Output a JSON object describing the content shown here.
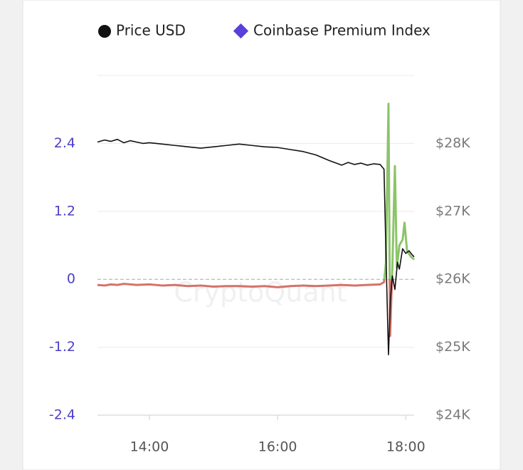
{
  "chart_data": {
    "type": "line",
    "watermark": "CryptoQuant",
    "xlim": [
      13.19,
      18.13
    ],
    "xticks": [
      {
        "value": 14,
        "label": "14:00"
      },
      {
        "value": 16,
        "label": "16:00"
      },
      {
        "value": 18,
        "label": "18:00"
      }
    ],
    "ylim": [
      -2.4,
      3.6
    ],
    "yticks": [
      -2.4,
      -1.2,
      0,
      1.2,
      2.4
    ],
    "y2lim": [
      24000,
      29000
    ],
    "y2ticks": [
      {
        "value": 24000,
        "label": "$24K"
      },
      {
        "value": 25000,
        "label": "$25K"
      },
      {
        "value": 26000,
        "label": "$26K"
      },
      {
        "value": 27000,
        "label": "$27K"
      },
      {
        "value": 28000,
        "label": "$28K"
      }
    ],
    "grid": true,
    "zero_line_dashed": true,
    "series": [
      {
        "name": "Price USD",
        "color": "#111111",
        "axis": "y2",
        "x": [
          13.19,
          13.3,
          13.4,
          13.5,
          13.6,
          13.7,
          13.8,
          13.9,
          14.0,
          14.2,
          14.4,
          14.6,
          14.8,
          15.0,
          15.2,
          15.4,
          15.6,
          15.8,
          16.0,
          16.2,
          16.4,
          16.6,
          16.8,
          17.0,
          17.1,
          17.2,
          17.3,
          17.4,
          17.5,
          17.6,
          17.66,
          17.7,
          17.73,
          17.76,
          17.79,
          17.83,
          17.87,
          17.9,
          17.95,
          18.0,
          18.05,
          18.1,
          18.13
        ],
        "values": [
          28020,
          28050,
          28030,
          28060,
          28010,
          28040,
          28020,
          28000,
          28010,
          27990,
          27970,
          27950,
          27930,
          27950,
          27970,
          27990,
          27970,
          27950,
          27940,
          27910,
          27880,
          27830,
          27750,
          27680,
          27720,
          27690,
          27710,
          27680,
          27700,
          27690,
          27620,
          26000,
          24890,
          25700,
          26050,
          25850,
          26250,
          26150,
          26450,
          26380,
          26420,
          26360,
          26330
        ]
      },
      {
        "name": "Coinbase Premium Index",
        "color": "#5b3fd9",
        "axis": "y",
        "positive_color": "#8cc46a",
        "negative_color": "#d57268",
        "x": [
          13.19,
          13.3,
          13.4,
          13.5,
          13.6,
          13.8,
          14.0,
          14.2,
          14.4,
          14.6,
          14.8,
          15.0,
          15.2,
          15.4,
          15.6,
          15.8,
          16.0,
          16.2,
          16.4,
          16.6,
          16.8,
          17.0,
          17.2,
          17.4,
          17.6,
          17.66,
          17.69,
          17.73,
          17.755,
          17.79,
          17.83,
          17.86,
          17.9,
          17.95,
          17.98,
          18.02,
          18.08,
          18.13
        ],
        "values": [
          -0.1,
          -0.11,
          -0.09,
          -0.1,
          -0.08,
          -0.1,
          -0.09,
          -0.11,
          -0.1,
          -0.12,
          -0.11,
          -0.13,
          -0.12,
          -0.12,
          -0.13,
          -0.12,
          -0.14,
          -0.12,
          -0.11,
          -0.12,
          -0.11,
          -0.1,
          -0.11,
          -0.1,
          -0.09,
          -0.05,
          0.3,
          3.1,
          -1.0,
          0.2,
          2.0,
          0.2,
          0.6,
          0.7,
          1.0,
          0.5,
          0.4,
          0.35
        ]
      }
    ]
  }
}
